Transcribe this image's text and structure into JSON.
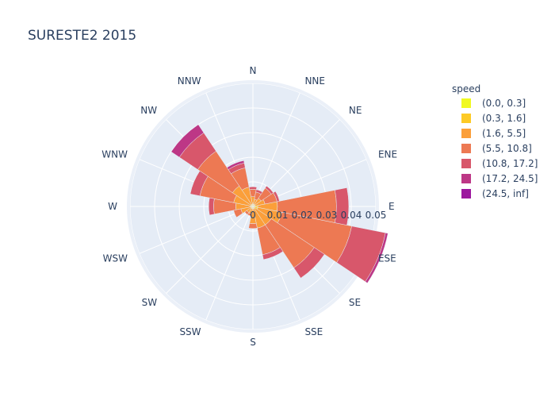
{
  "chart_data": {
    "type": "barpolar",
    "title": "SURESTE2 2015",
    "directions": [
      "N",
      "NNE",
      "NE",
      "ENE",
      "E",
      "ESE",
      "SE",
      "SSE",
      "S",
      "SSW",
      "SW",
      "WSW",
      "W",
      "WNW",
      "NW",
      "NNW"
    ],
    "radial_ticks": [
      "0",
      "0.01",
      "0.02",
      "0.03",
      "0.04",
      "0.05"
    ],
    "radial_range": [
      0,
      0.05
    ],
    "legend_title": "speed",
    "series": [
      {
        "name": "(0.0, 0.3]",
        "color": "#f0f921",
        "values": [
          0,
          0,
          0,
          0,
          0,
          0,
          0,
          0,
          0,
          0,
          0,
          0,
          0,
          0,
          0,
          0
        ]
      },
      {
        "name": "(0.3, 1.6]",
        "color": "#fdca26",
        "values": [
          0.001,
          0.001,
          0.001,
          0.001,
          0.002,
          0.002,
          0.001,
          0.001,
          0.001,
          0.001,
          0.001,
          0.001,
          0.001,
          0.001,
          0.001,
          0.001
        ]
      },
      {
        "name": "(1.6, 5.5]",
        "color": "#fb9f3a",
        "values": [
          0.003,
          0.002,
          0.003,
          0.004,
          0.008,
          0.01,
          0.008,
          0.008,
          0.006,
          0.002,
          0.002,
          0.004,
          0.006,
          0.007,
          0.009,
          0.007
        ]
      },
      {
        "name": "(5.5, 10.8]",
        "color": "#ed7953",
        "values": [
          0.003,
          0.003,
          0.005,
          0.005,
          0.024,
          0.029,
          0.021,
          0.011,
          0.002,
          0.001,
          0.001,
          0.003,
          0.009,
          0.014,
          0.017,
          0.008
        ]
      },
      {
        "name": "(10.8, 17.2]",
        "color": "#d8576b",
        "values": [
          0.001,
          0.001,
          0.001,
          0.001,
          0.005,
          0.014,
          0.005,
          0.002,
          0,
          0,
          0,
          0,
          0.002,
          0.004,
          0.009,
          0.002
        ]
      },
      {
        "name": "(17.2, 24.5]",
        "color": "#bd3786",
        "values": [
          0,
          0,
          0,
          0,
          0,
          0.001,
          0,
          0,
          0,
          0,
          0,
          0,
          0,
          0,
          0.004,
          0.001
        ]
      },
      {
        "name": "(24.5, inf]",
        "color": "#9c179e",
        "values": [
          0,
          0,
          0,
          0,
          0,
          0,
          0,
          0,
          0,
          0,
          0,
          0,
          0,
          0,
          0,
          0
        ]
      }
    ],
    "grid": true,
    "legend_position": "right"
  }
}
